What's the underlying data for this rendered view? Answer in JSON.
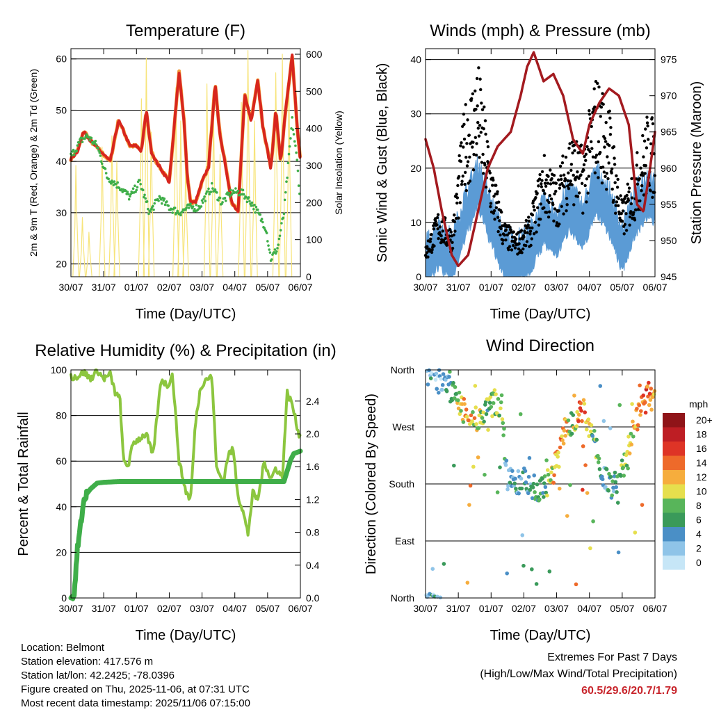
{
  "colors": {
    "temp_red": "#d7261e",
    "temp_orange": "#f39c3a",
    "dewpoint_green": "#3fae49",
    "solar_yellow": "#f7e47a",
    "wind_blue": "#5b9bd5",
    "gust_black": "#000000",
    "pressure_maroon": "#a31a1f",
    "rh_green": "#8cc63f",
    "precip_green": "#3fae49",
    "extremes_red": "#c8252c"
  },
  "time_ticks": [
    "30/07",
    "31/07",
    "01/07",
    "02/07",
    "03/07",
    "04/07",
    "05/07",
    "06/07"
  ],
  "chart_data": [
    {
      "id": "temperature",
      "type": "line",
      "title": "Temperature (F)",
      "xlabel": "Time (Day/UTC)",
      "ylabel": "2m & 9m T (Red, Orange) & 2m Td (Green)",
      "ylabel_right": "Solar Insolation (Yellow)",
      "xlim": [
        0,
        7
      ],
      "ylim": [
        17.5,
        62
      ],
      "ylim_right": [
        0,
        615
      ],
      "yticks": [
        20,
        30,
        40,
        50,
        60
      ],
      "yticks_right": [
        0,
        100,
        200,
        300,
        400,
        500,
        600
      ],
      "gridlines": [
        20,
        30,
        40,
        50,
        60
      ],
      "series": [
        {
          "name": "2m/9m T",
          "color": "#d7261e",
          "x": [
            0,
            0.2,
            0.4,
            0.6,
            0.9,
            1.2,
            1.45,
            1.6,
            1.8,
            2.0,
            2.15,
            2.3,
            2.45,
            2.6,
            2.75,
            3.0,
            3.3,
            3.45,
            3.55,
            3.65,
            3.8,
            4.0,
            4.2,
            4.4,
            4.55,
            4.7,
            4.9,
            5.1,
            5.3,
            5.5,
            5.7,
            5.85,
            6.0,
            6.1,
            6.25,
            6.4,
            6.55,
            6.75,
            6.9,
            7.0
          ],
          "values": [
            40.5,
            42,
            46,
            44,
            42,
            40,
            48,
            46,
            43,
            43,
            42,
            50,
            42,
            40,
            38.5,
            36,
            57.5,
            48,
            37,
            32,
            32,
            36,
            39,
            55,
            45,
            40,
            32,
            30,
            53,
            48,
            56,
            47,
            42,
            38.5,
            50,
            40,
            50,
            60.5,
            47,
            40
          ]
        },
        {
          "name": "2m Td",
          "color": "#3fae49",
          "x": [
            0,
            0.3,
            0.5,
            0.8,
            1.1,
            1.5,
            1.8,
            2.1,
            2.4,
            2.7,
            3.0,
            3.3,
            3.6,
            3.9,
            4.3,
            4.6,
            4.9,
            5.2,
            5.5,
            5.7,
            5.95,
            6.1,
            6.3,
            6.5,
            6.75,
            6.9,
            7.0
          ],
          "values": [
            41,
            44,
            45,
            43,
            37,
            35,
            33,
            36,
            30,
            33,
            31,
            30,
            31,
            31,
            35,
            32,
            34,
            34,
            32,
            30,
            27,
            21,
            23,
            30,
            48,
            40,
            32
          ]
        },
        {
          "name": "Solar",
          "color": "#f7e47a",
          "axis": "right",
          "x": [
            0.15,
            0.35,
            0.55,
            0.95,
            1.25,
            1.4,
            2.15,
            2.3,
            2.45,
            3.2,
            3.35,
            3.5,
            4.15,
            4.35,
            4.55,
            5.2,
            5.4,
            5.6,
            6.25,
            6.45,
            6.65
          ],
          "values": [
            300,
            160,
            120,
            350,
            380,
            310,
            480,
            590,
            390,
            510,
            420,
            300,
            520,
            450,
            330,
            470,
            610,
            420,
            550,
            600,
            520
          ]
        }
      ]
    },
    {
      "id": "winds",
      "type": "scatter",
      "title": "Winds (mph) & Pressure (mb)",
      "xlabel": "Time (Day/UTC)",
      "ylabel": "Sonic Wind & Gust (Blue, Black)",
      "ylabel_right": "Station Pressure (Maroon)",
      "xlim": [
        0,
        7
      ],
      "ylim": [
        0,
        42
      ],
      "ylim_right": [
        945,
        976.5
      ],
      "yticks": [
        0,
        10,
        20,
        30,
        40
      ],
      "yticks_right": [
        945,
        950,
        955,
        960,
        965,
        970,
        975
      ],
      "gridlines": [
        0,
        10,
        20,
        30,
        40
      ],
      "series": [
        {
          "name": "Wind",
          "color": "#5b9bd5",
          "x": [
            0,
            0.4,
            0.8,
            1.2,
            1.6,
            2.0,
            2.4,
            2.8,
            3.2,
            3.6,
            4.0,
            4.4,
            4.8,
            5.2,
            5.6,
            6.0,
            6.4,
            6.8,
            7.0
          ],
          "values": [
            2,
            6,
            3,
            11,
            17,
            10,
            4,
            3,
            5,
            10,
            8,
            13,
            9,
            16,
            12,
            5,
            12,
            15,
            14
          ]
        },
        {
          "name": "Gust",
          "color": "#000000",
          "x": [
            0,
            0.4,
            0.8,
            1.2,
            1.6,
            2.0,
            2.4,
            2.8,
            3.2,
            3.6,
            4.0,
            4.4,
            4.8,
            5.2,
            5.6,
            6.0,
            6.4,
            6.8,
            7.0
          ],
          "values": [
            5,
            11,
            8,
            28,
            35,
            19,
            9,
            7,
            10,
            20,
            16,
            24,
            21,
            33,
            28,
            12,
            19,
            27,
            25
          ]
        },
        {
          "name": "Pressure",
          "color": "#a31a1f",
          "axis": "right",
          "x": [
            0,
            0.25,
            0.5,
            0.8,
            1.0,
            1.3,
            1.6,
            1.9,
            2.2,
            2.6,
            2.9,
            3.1,
            3.3,
            3.6,
            3.9,
            4.2,
            4.5,
            4.8,
            5.0,
            5.3,
            5.6,
            5.9,
            6.2,
            6.45,
            6.65,
            6.85,
            7.0
          ],
          "values": [
            964,
            960,
            954,
            948,
            946.5,
            948,
            954,
            960,
            963,
            965,
            970,
            974,
            976,
            972,
            973,
            970,
            964,
            962,
            966,
            969,
            971,
            970,
            966,
            955,
            954,
            960,
            965
          ]
        }
      ]
    },
    {
      "id": "humidity",
      "type": "line",
      "title": "Relative Humidity (%) & Precipitation (in)",
      "xlabel": "Time (Day/UTC)",
      "ylabel": "Percent & Total Rainfall",
      "xlim": [
        0,
        7
      ],
      "ylim": [
        0,
        100
      ],
      "ylim_right": [
        0,
        2.78
      ],
      "yticks": [
        0,
        20,
        40,
        60,
        80,
        100
      ],
      "yticks_right": [
        "0.0",
        "0.4",
        "0.8",
        "1.2",
        "1.6",
        "2.0",
        "2.4"
      ],
      "gridlines": [
        20,
        40,
        60,
        80
      ],
      "series": [
        {
          "name": "RH",
          "color": "#8cc63f",
          "x": [
            0,
            0.2,
            0.4,
            0.6,
            0.8,
            1.0,
            1.2,
            1.35,
            1.5,
            1.6,
            1.75,
            1.9,
            2.1,
            2.3,
            2.5,
            2.75,
            2.95,
            3.1,
            3.3,
            3.5,
            3.65,
            3.8,
            3.95,
            4.1,
            4.3,
            4.45,
            4.65,
            4.8,
            4.95,
            5.1,
            5.25,
            5.4,
            5.55,
            5.7,
            5.9,
            6.1,
            6.25,
            6.45,
            6.6,
            6.75,
            6.9,
            7.0
          ],
          "values": [
            97,
            97,
            99,
            96,
            100,
            96,
            98,
            90,
            87,
            60,
            58,
            68,
            70,
            72,
            62,
            96,
            93,
            98,
            60,
            47,
            43,
            77,
            92,
            96,
            97,
            56,
            51,
            63,
            65,
            45,
            38,
            28,
            46,
            43,
            60,
            52,
            57,
            53,
            90,
            85,
            75,
            70
          ]
        },
        {
          "name": "Precip",
          "color": "#3fae49",
          "axis": "right",
          "x": [
            0,
            0.1,
            0.2,
            0.3,
            0.4,
            0.5,
            0.6,
            0.8,
            1.0,
            1.5,
            2.0,
            3.0,
            4.0,
            5.0,
            6.0,
            6.5,
            6.6,
            6.7,
            6.8,
            7.0
          ],
          "values": [
            0,
            0.05,
            0.6,
            0.9,
            1.2,
            1.28,
            1.33,
            1.4,
            1.41,
            1.42,
            1.42,
            1.42,
            1.42,
            1.42,
            1.42,
            1.42,
            1.55,
            1.68,
            1.76,
            1.79
          ]
        }
      ]
    },
    {
      "id": "direction",
      "type": "scatter",
      "title": "Wind Direction",
      "xlabel": "Time (Day/UTC)",
      "ylabel": "Direction (Colored By Speed)",
      "xlim": [
        0,
        7
      ],
      "ylim": [
        0,
        360
      ],
      "ytick_labels": [
        "North",
        "East",
        "South",
        "West",
        "North"
      ],
      "gridlines": [
        90,
        180,
        270
      ],
      "colorbar_title": "mph",
      "colorbar_labels": [
        "0",
        "2",
        "4",
        "6",
        "8",
        "10",
        "12",
        "14",
        "16",
        "18",
        "20+"
      ],
      "colorbar_colors": [
        "#c6e6f7",
        "#8fc4e8",
        "#4a8fc6",
        "#3a9a5a",
        "#58b55a",
        "#e6df4d",
        "#f6ad3d",
        "#ee6a2a",
        "#de3426",
        "#be1e24",
        "#8f1418"
      ],
      "series": [
        {
          "name": "Direction",
          "x": [
            0.1,
            0.3,
            0.5,
            0.7,
            0.9,
            1.1,
            1.3,
            1.5,
            1.7,
            1.9,
            2.1,
            2.3,
            2.5,
            2.7,
            3.0,
            3.3,
            3.6,
            3.9,
            4.2,
            4.5,
            4.8,
            5.1,
            5.4,
            5.7,
            6.0,
            6.3,
            6.6,
            6.8,
            7.0
          ],
          "values": [
            350,
            345,
            340,
            335,
            320,
            300,
            290,
            280,
            285,
            300,
            310,
            305,
            190,
            180,
            185,
            175,
            170,
            200,
            260,
            280,
            300,
            260,
            200,
            170,
            200,
            260,
            300,
            320,
            310
          ],
          "speeds": [
            3,
            4,
            3,
            5,
            10,
            12,
            14,
            12,
            10,
            8,
            9,
            10,
            4,
            5,
            6,
            6,
            8,
            12,
            14,
            10,
            16,
            8,
            6,
            6,
            8,
            12,
            14,
            16,
            12
          ]
        }
      ]
    }
  ],
  "footer": {
    "location": "Location: Belmont",
    "elevation": "Station elevation: 417.576 m",
    "latlon": "Station lat/lon: 42.2425; -78.0396",
    "created": "Figure created on Thu, 2025-11-06, at 07:31 UTC",
    "recent": "Most recent data timestamp: 2025/11/06 07:15:00",
    "extremes_title": "Extremes For Past 7 Days",
    "extremes_subtitle": "(High/Low/Max Wind/Total Precipitation)",
    "extremes_values": "60.5/29.6/20.7/1.79"
  }
}
